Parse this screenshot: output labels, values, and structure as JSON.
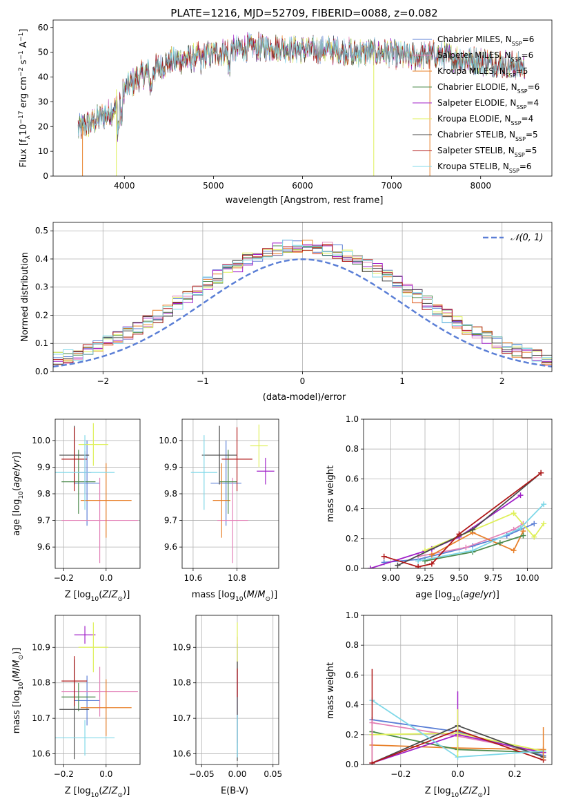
{
  "chart_data": [
    {
      "type": "line",
      "title": "PLATE=1216, MJD=52709, FIBERID=0088, z=0.082",
      "xlabel": "wavelength [Angstrom, rest frame]",
      "ylabel": "Flux [fλ10⁻¹⁷ erg cm⁻² s⁻¹ A⁻¹]",
      "xlim": [
        3200,
        8800
      ],
      "ylim": [
        0,
        63
      ],
      "xticks": [
        4000,
        5000,
        6000,
        7000,
        8000
      ],
      "yticks": [
        0,
        10,
        20,
        30,
        40,
        50,
        60
      ],
      "grid": false,
      "legend": "upper right",
      "continuum": {
        "x": [
          3480,
          3700,
          3900,
          4000,
          4200,
          4500,
          4800,
          5100,
          5400,
          5700,
          6000,
          6300,
          6600,
          6900,
          7200,
          7500,
          7800,
          8100,
          8500
        ],
        "y": [
          19,
          23,
          27,
          35,
          41,
          46,
          48,
          50,
          52,
          52,
          51,
          51,
          50,
          50,
          48,
          49,
          47,
          46,
          44
        ]
      },
      "series": [
        {
          "name": "Chabrier MILES",
          "nssp": "6",
          "color": "#5b7fd6"
        },
        {
          "name": "Salpeter MILES",
          "nssp": "6",
          "color": "#e382b8"
        },
        {
          "name": "Kroupa MILES",
          "nssp": "5",
          "color": "#e8802a"
        },
        {
          "name": "Chabrier ELODIE",
          "nssp": "6",
          "color": "#4b8a4b"
        },
        {
          "name": "Salpeter ELODIE",
          "nssp": "4",
          "color": "#a020c8"
        },
        {
          "name": "Kroupa ELODIE",
          "nssp": "4",
          "color": "#dff05a"
        },
        {
          "name": "Chabrier STELIB",
          "nssp": "5",
          "color": "#4a4a4a"
        },
        {
          "name": "Salpeter STELIB",
          "nssp": "5",
          "color": "#b01818"
        },
        {
          "name": "Kroupa STELIB",
          "nssp": "6",
          "color": "#7fd8e8"
        }
      ]
    },
    {
      "type": "line",
      "xlabel": "(data-model)/error",
      "ylabel": "Normed distribution",
      "xlim": [
        -2.5,
        2.5
      ],
      "ylim": [
        0,
        0.53
      ],
      "xticks": [
        -2,
        -1,
        0,
        1,
        2
      ],
      "yticks": [
        0.0,
        0.1,
        0.2,
        0.3,
        0.4,
        0.5
      ],
      "grid": true,
      "legend": "upper right",
      "legend_label": "N(0,1)",
      "gaussian": {
        "mean": 0,
        "sigma": 1,
        "color": "#5b7fd6"
      },
      "histogram": {
        "bin_width": 0.1,
        "start": -2.5
      }
    },
    {
      "type": "scatter",
      "xlabel": "Z [log10(Z/Z⊙)]",
      "ylabel": "age  [log10(age/yr)]",
      "xlim": [
        -0.24,
        0.16
      ],
      "ylim": [
        9.52,
        10.08
      ],
      "xticks": [
        -0.2,
        0.0
      ],
      "yticks": [
        9.6,
        9.7,
        9.8,
        9.9,
        10.0
      ],
      "grid": true,
      "points": [
        {
          "x": -0.09,
          "xerr": 0.06,
          "y": 9.84,
          "yerr": 0.16,
          "color": "#5b7fd6"
        },
        {
          "x": -0.03,
          "xerr": 0.18,
          "y": 9.7,
          "yerr": 0.16,
          "color": "#e382b8"
        },
        {
          "x": 0.0,
          "xerr": 0.12,
          "y": 9.775,
          "yerr": 0.14,
          "color": "#e8802a"
        },
        {
          "x": -0.13,
          "xerr": 0.08,
          "y": 9.845,
          "yerr": 0.12,
          "color": "#4b8a4b"
        },
        {
          "x": -0.1,
          "xerr": 0.03,
          "y": 9.88,
          "yerr": 0.08,
          "color": "#a020c8"
        },
        {
          "x": -0.06,
          "xerr": 0.07,
          "y": 9.985,
          "yerr": 0.08,
          "color": "#dff05a"
        },
        {
          "x": -0.15,
          "xerr": 0.07,
          "y": 9.945,
          "yerr": 0.11,
          "color": "#4a4a4a"
        },
        {
          "x": -0.15,
          "xerr": 0.06,
          "y": 9.93,
          "yerr": 0.12,
          "color": "#b01818"
        },
        {
          "x": -0.1,
          "xerr": 0.14,
          "y": 9.88,
          "yerr": 0.14,
          "color": "#7fd8e8"
        }
      ]
    },
    {
      "type": "scatter",
      "xlabel": "mass [log10(M/M⊙)]",
      "ylabel": "",
      "xlim": [
        10.55,
        10.99
      ],
      "ylim": [
        9.52,
        10.08
      ],
      "xticks": [
        10.6,
        10.8
      ],
      "yticks": [
        9.6,
        9.7,
        9.8,
        9.9,
        10.0
      ],
      "grid": true,
      "points": [
        {
          "x": 10.75,
          "xerr": 0.07,
          "y": 9.84,
          "yerr": 0.16,
          "color": "#5b7fd6"
        },
        {
          "x": 10.78,
          "xerr": 0.07,
          "y": 9.7,
          "yerr": 0.16,
          "color": "#e382b8"
        },
        {
          "x": 10.73,
          "xerr": 0.04,
          "y": 9.775,
          "yerr": 0.14,
          "color": "#e8802a"
        },
        {
          "x": 10.76,
          "xerr": 0.04,
          "y": 9.845,
          "yerr": 0.12,
          "color": "#4b8a4b"
        },
        {
          "x": 10.93,
          "xerr": 0.04,
          "y": 9.885,
          "yerr": 0.05,
          "color": "#a020c8"
        },
        {
          "x": 10.9,
          "xerr": 0.04,
          "y": 9.98,
          "yerr": 0.08,
          "color": "#dff05a"
        },
        {
          "x": 10.72,
          "xerr": 0.08,
          "y": 9.945,
          "yerr": 0.11,
          "color": "#4a4a4a"
        },
        {
          "x": 10.8,
          "xerr": 0.07,
          "y": 9.93,
          "yerr": 0.12,
          "color": "#b01818"
        },
        {
          "x": 10.65,
          "xerr": 0.06,
          "y": 9.88,
          "yerr": 0.14,
          "color": "#7fd8e8"
        }
      ]
    },
    {
      "type": "line",
      "xlabel": "age  [log10(age/yr)]",
      "ylabel": "mass weight",
      "xlim": [
        8.8,
        10.18
      ],
      "ylim": [
        0,
        1.0
      ],
      "xticks": [
        9.0,
        9.25,
        9.5,
        9.75,
        10.0
      ],
      "yticks": [
        0.0,
        0.2,
        0.4,
        0.6,
        0.8,
        1.0
      ],
      "grid": true,
      "series": [
        {
          "color": "#5b7fd6",
          "x": [
            8.95,
            9.2,
            9.6,
            9.85,
            10.05
          ],
          "y": [
            0.04,
            0.06,
            0.15,
            0.22,
            0.3
          ]
        },
        {
          "color": "#e382b8",
          "x": [
            9.2,
            9.55,
            9.9,
            9.97
          ],
          "y": [
            0.08,
            0.14,
            0.26,
            0.3
          ]
        },
        {
          "color": "#e8802a",
          "x": [
            9.3,
            9.6,
            9.9,
            9.97
          ],
          "y": [
            0.09,
            0.24,
            0.12,
            0.25
          ]
        },
        {
          "color": "#4b8a4b",
          "x": [
            9.25,
            9.6,
            9.8,
            9.97
          ],
          "y": [
            0.05,
            0.11,
            0.17,
            0.22
          ]
        },
        {
          "color": "#a020c8",
          "x": [
            8.85,
            9.3,
            9.5,
            9.95
          ],
          "y": [
            0.0,
            0.13,
            0.21,
            0.49
          ]
        },
        {
          "color": "#dff05a",
          "x": [
            9.25,
            9.9,
            10.05,
            10.12
          ],
          "y": [
            0.12,
            0.37,
            0.21,
            0.3
          ]
        },
        {
          "color": "#4a4a4a",
          "x": [
            9.05,
            9.6,
            10.1
          ],
          "y": [
            0.02,
            0.26,
            0.64
          ]
        },
        {
          "color": "#b01818",
          "x": [
            8.95,
            9.2,
            9.3,
            9.5,
            10.1
          ],
          "y": [
            0.08,
            0.01,
            0.03,
            0.23,
            0.64
          ]
        },
        {
          "color": "#7fd8e8",
          "x": [
            9.2,
            9.6,
            9.95,
            10.12
          ],
          "y": [
            0.05,
            0.12,
            0.27,
            0.43
          ]
        }
      ]
    },
    {
      "type": "scatter",
      "xlabel": "Z [log10(Z/Z⊙)]",
      "ylabel": "mass [log10(M/M⊙)]",
      "xlim": [
        -0.24,
        0.16
      ],
      "ylim": [
        10.57,
        10.99
      ],
      "xticks": [
        -0.2,
        0.0
      ],
      "yticks": [
        10.6,
        10.7,
        10.8,
        10.9
      ],
      "grid": true,
      "points": [
        {
          "x": -0.09,
          "xerr": 0.06,
          "y": 10.75,
          "yerr": 0.07,
          "color": "#5b7fd6"
        },
        {
          "x": -0.03,
          "xerr": 0.18,
          "y": 10.775,
          "yerr": 0.07,
          "color": "#e382b8"
        },
        {
          "x": 0.0,
          "xerr": 0.12,
          "y": 10.73,
          "yerr": 0.08,
          "color": "#e8802a"
        },
        {
          "x": -0.13,
          "xerr": 0.08,
          "y": 10.76,
          "yerr": 0.04,
          "color": "#4b8a4b"
        },
        {
          "x": -0.1,
          "xerr": 0.05,
          "y": 10.935,
          "yerr": 0.025,
          "color": "#a020c8"
        },
        {
          "x": -0.06,
          "xerr": 0.07,
          "y": 10.9,
          "yerr": 0.07,
          "color": "#dff05a"
        },
        {
          "x": -0.15,
          "xerr": 0.07,
          "y": 10.725,
          "yerr": 0.14,
          "color": "#4a4a4a"
        },
        {
          "x": -0.15,
          "xerr": 0.06,
          "y": 10.805,
          "yerr": 0.07,
          "color": "#b01818"
        },
        {
          "x": -0.1,
          "xerr": 0.14,
          "y": 10.645,
          "yerr": 0.05,
          "color": "#7fd8e8"
        }
      ]
    },
    {
      "type": "scatter",
      "xlabel": "E(B-V)",
      "ylabel": "",
      "xlim": [
        -0.058,
        0.058
      ],
      "ylim": [
        10.57,
        10.99
      ],
      "xticks": [
        -0.05,
        0.0,
        0.05
      ],
      "yticks": [
        10.6,
        10.7,
        10.8,
        10.9
      ],
      "grid": true,
      "points": [
        {
          "x": 0.0,
          "xerr": 0.0,
          "y": 10.75,
          "yerr": 0.16,
          "color": "#5b7fd6"
        },
        {
          "x": 0.0,
          "xerr": 0.0,
          "y": 10.78,
          "yerr": 0.15,
          "color": "#e382b8"
        },
        {
          "x": 0.0,
          "xerr": 0.0,
          "y": 10.9,
          "yerr": 0.07,
          "color": "#dff05a"
        },
        {
          "x": 0.0,
          "xerr": 0.0,
          "y": 10.72,
          "yerr": 0.14,
          "color": "#4a4a4a"
        },
        {
          "x": 0.0,
          "xerr": 0.0,
          "y": 10.8,
          "yerr": 0.04,
          "color": "#b01818"
        },
        {
          "x": 0.0,
          "xerr": 0.0,
          "y": 10.65,
          "yerr": 0.06,
          "color": "#7fd8e8"
        }
      ]
    },
    {
      "type": "line",
      "xlabel": "Z [log10(Z/Z⊙)]",
      "ylabel": "mass weight",
      "xlim": [
        -0.33,
        0.33
      ],
      "ylim": [
        0,
        1.0
      ],
      "xticks": [
        -0.2,
        0.0,
        0.2
      ],
      "yticks": [
        0.0,
        0.2,
        0.4,
        0.6,
        0.8,
        1.0
      ],
      "grid": true,
      "series": [
        {
          "color": "#5b7fd6",
          "x": [
            -0.3,
            0.0,
            0.3
          ],
          "y": [
            0.3,
            0.22,
            0.06
          ]
        },
        {
          "color": "#e382b8",
          "x": [
            -0.3,
            0.0,
            0.3
          ],
          "y": [
            0.28,
            0.19,
            0.08
          ]
        },
        {
          "color": "#e8802a",
          "x": [
            -0.3,
            0.0,
            0.3
          ],
          "y": [
            0.13,
            0.11,
            0.1
          ]
        },
        {
          "color": "#4b8a4b",
          "x": [
            -0.3,
            0.0,
            0.3
          ],
          "y": [
            0.22,
            0.1,
            0.08
          ]
        },
        {
          "color": "#a020c8",
          "x": [
            -0.3,
            0.0,
            0.3
          ],
          "y": [
            0.01,
            0.2,
            0.08
          ]
        },
        {
          "color": "#dff05a",
          "x": [
            -0.3,
            0.0,
            0.3
          ],
          "y": [
            0.2,
            0.21,
            0.09
          ]
        },
        {
          "color": "#4a4a4a",
          "x": [
            -0.3,
            0.0,
            0.3
          ],
          "y": [
            0.01,
            0.26,
            0.05
          ]
        },
        {
          "color": "#b01818",
          "x": [
            -0.3,
            0.0,
            0.3
          ],
          "y": [
            0.01,
            0.23,
            0.03
          ]
        },
        {
          "color": "#7fd8e8",
          "x": [
            -0.3,
            0.0,
            0.3
          ],
          "y": [
            0.43,
            0.05,
            0.09
          ]
        }
      ]
    }
  ]
}
